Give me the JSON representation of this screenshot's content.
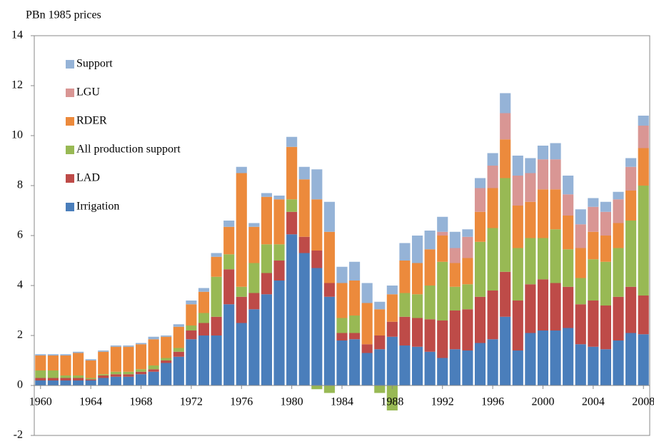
{
  "chart_data": {
    "type": "stacked_bar",
    "y_label": "PBn 1985 prices",
    "categories": [
      "1960",
      null,
      null,
      null,
      "1964",
      null,
      null,
      null,
      "1968",
      null,
      null,
      null,
      "1972",
      null,
      null,
      null,
      "1976",
      null,
      null,
      null,
      "1980",
      null,
      null,
      null,
      "1984",
      null,
      null,
      null,
      "1988",
      null,
      null,
      null,
      "1992",
      null,
      null,
      null,
      "1996",
      null,
      null,
      null,
      "2000",
      null,
      null,
      null,
      "2004",
      null,
      null,
      null,
      "2008"
    ],
    "series": [
      {
        "name": "Irrigation",
        "color": "#4a7ebb",
        "values": [
          0.2,
          0.2,
          0.2,
          0.2,
          0.2,
          0.3,
          0.35,
          0.35,
          0.45,
          0.55,
          0.9,
          1.15,
          1.85,
          2.0,
          2.0,
          3.25,
          2.5,
          3.05,
          3.65,
          4.2,
          6.05,
          5.3,
          4.7,
          3.55,
          1.8,
          1.85,
          1.3,
          1.45,
          1.95,
          1.6,
          1.55,
          1.35,
          1.1,
          1.45,
          1.4,
          1.7,
          1.85,
          2.75,
          1.4,
          2.1,
          2.2,
          2.2,
          2.3,
          1.65,
          1.55,
          1.45,
          1.8,
          2.1,
          2.05
        ]
      },
      {
        "name": "LAD",
        "color": "#be4b48",
        "values": [
          0.1,
          0.1,
          0.1,
          0.1,
          0.05,
          0.1,
          0.1,
          0.1,
          0.1,
          0.1,
          0.1,
          0.2,
          0.35,
          0.5,
          0.75,
          1.4,
          1.05,
          0.65,
          0.85,
          0.8,
          0.9,
          0.65,
          0.7,
          0.55,
          0.3,
          0.25,
          0.35,
          0.55,
          0.6,
          1.15,
          1.15,
          1.3,
          1.5,
          1.55,
          1.65,
          1.85,
          1.95,
          1.8,
          2.0,
          1.95,
          2.05,
          1.9,
          1.65,
          1.6,
          1.85,
          1.75,
          1.75,
          1.85,
          1.55
        ]
      },
      {
        "name": "All production support",
        "color": "#98b954",
        "values": [
          0.3,
          0.3,
          0.1,
          0.1,
          0.05,
          0.05,
          0.1,
          0.1,
          0.1,
          0.15,
          0.1,
          0.15,
          0.2,
          0.4,
          1.6,
          0.6,
          0.4,
          1.2,
          1.15,
          0.65,
          0.5,
          0,
          -0.15,
          -0.3,
          0.6,
          0.7,
          0,
          -0.3,
          -1.0,
          0.95,
          0.95,
          1.35,
          2.35,
          0.95,
          1.0,
          2.2,
          2.5,
          3.75,
          2.1,
          1.85,
          1.65,
          2.15,
          1.5,
          1.05,
          1.65,
          1.75,
          1.95,
          2.65,
          4.4
        ]
      },
      {
        "name": "RDER",
        "color": "#ec8a3c",
        "values": [
          0.6,
          0.6,
          0.8,
          0.9,
          0.7,
          0.9,
          1.0,
          1.0,
          1.0,
          1.05,
          0.85,
          0.85,
          0.85,
          0.85,
          0.8,
          1.1,
          4.55,
          1.45,
          1.9,
          1.8,
          2.1,
          2.3,
          2.05,
          2.05,
          1.4,
          1.4,
          1.65,
          1.05,
          1.1,
          1.3,
          1.25,
          1.45,
          1.05,
          0.95,
          1.05,
          1.2,
          1.6,
          1.55,
          1.7,
          1.45,
          1.95,
          1.6,
          1.35,
          1.2,
          1.1,
          1.05,
          1.0,
          1.2,
          1.5
        ]
      },
      {
        "name": "LGU",
        "color": "#d99694",
        "values": [
          0,
          0,
          0,
          0,
          0,
          0,
          0,
          0,
          0,
          0,
          0,
          0,
          0,
          0,
          0,
          0,
          0,
          0,
          0,
          0,
          0,
          0,
          0,
          0,
          0,
          0,
          0,
          0,
          0,
          0,
          0,
          0,
          0.15,
          0.6,
          0.85,
          0.95,
          0.9,
          1.05,
          1.2,
          1.15,
          1.2,
          1.2,
          0.85,
          0.95,
          1.0,
          0.95,
          0.95,
          0.95,
          0.9
        ]
      },
      {
        "name": "Support",
        "color": "#95b3d7",
        "values": [
          0.05,
          0.05,
          0.05,
          0.05,
          0.05,
          0.05,
          0.05,
          0.05,
          0.05,
          0.1,
          0.05,
          0.1,
          0.15,
          0.15,
          0.15,
          0.25,
          0.25,
          0.15,
          0.15,
          0.15,
          0.4,
          0.5,
          1.2,
          1.2,
          0.65,
          0.75,
          0.8,
          0.3,
          0.35,
          0.7,
          1.1,
          0.75,
          0.6,
          0.65,
          0.3,
          0.4,
          0.5,
          0.8,
          0.8,
          0.6,
          0.55,
          0.65,
          0.75,
          0.6,
          0.35,
          0.4,
          0.3,
          0.35,
          0.4
        ]
      }
    ],
    "ylim": [
      -2,
      14
    ],
    "yticks": [
      -2,
      0,
      2,
      4,
      6,
      8,
      10,
      12,
      14
    ],
    "grid": false
  }
}
